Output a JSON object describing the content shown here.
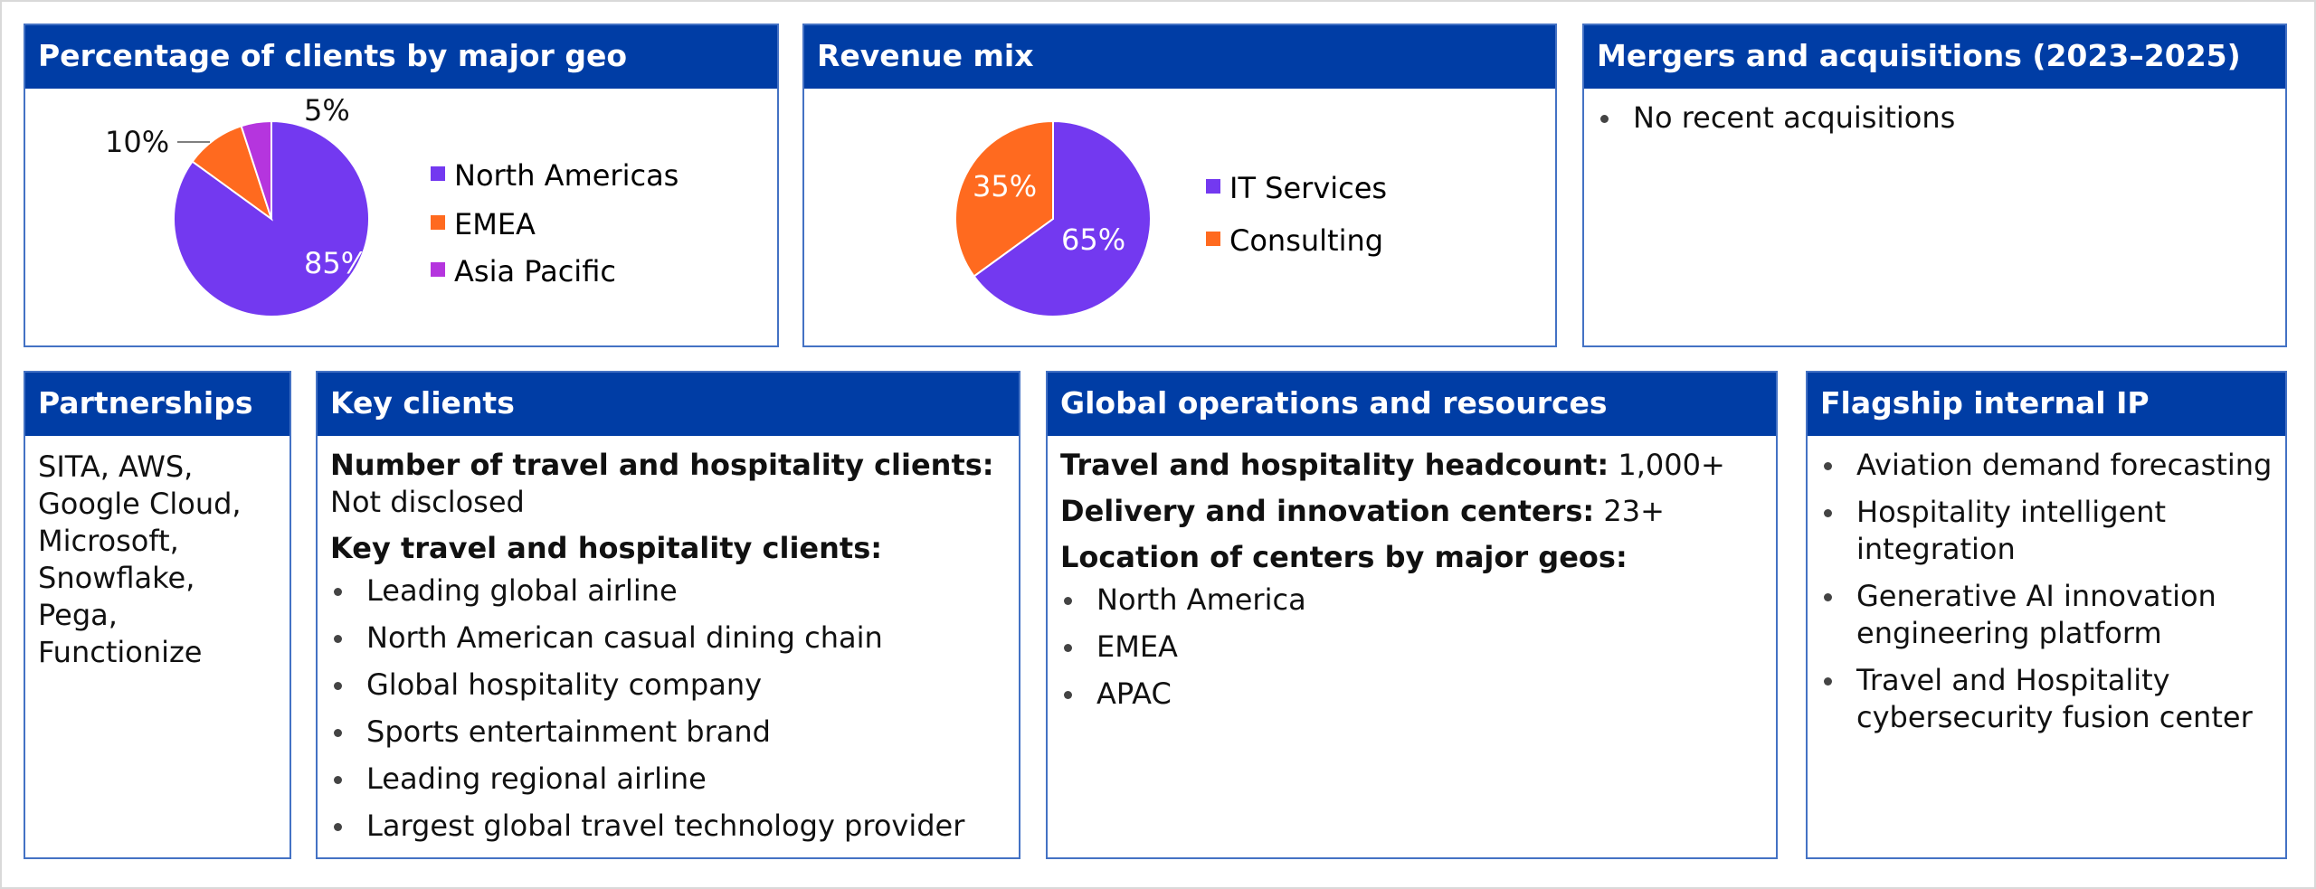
{
  "colors": {
    "header": "#003da5",
    "border": "#4472c4",
    "purple": "#7339f0",
    "orange": "#ff6a1f",
    "magenta": "#b535de"
  },
  "geo": {
    "title": "Percentage of clients by major geo"
  },
  "revenue": {
    "title": "Revenue mix"
  },
  "mna": {
    "title": "Mergers and acquisitions (2023–2025)",
    "items": [
      "No recent acquisitions"
    ]
  },
  "partnerships": {
    "title": "Partnerships",
    "text": "SITA, AWS, Google Cloud, Microsoft, Snowflake, Pega, Functionize"
  },
  "key_clients": {
    "title": "Key clients",
    "count_label": "Number of travel and hospitality clients:",
    "count_value": "Not disclosed",
    "list_label": "Key travel and hospitality clients:",
    "items": [
      "Leading global airline",
      "North American casual dining chain",
      "Global hospitality company",
      "Sports entertainment brand",
      "Leading regional airline",
      "Largest global travel technology provider"
    ]
  },
  "ops": {
    "title": "Global operations and resources",
    "headcount_label": "Travel and hospitality headcount:",
    "headcount_value": "1,000+",
    "centers_label": "Delivery and innovation centers:",
    "centers_value": "23+",
    "locations_label": "Location of centers by major geos:",
    "locations": [
      "North America",
      "EMEA",
      "APAC"
    ]
  },
  "ip": {
    "title": "Flagship internal IP",
    "items": [
      "Aviation demand forecasting",
      "Hospitality intelligent integration",
      "Generative AI innovation engineering platform",
      "Travel and Hospitality cybersecurity fusion center"
    ]
  },
  "chart_data": [
    {
      "type": "pie",
      "title": "Percentage of clients by major geo",
      "categories": [
        "North Americas",
        "EMEA",
        "Asia Pacific"
      ],
      "values": [
        85,
        10,
        5
      ],
      "labels": [
        "85%",
        "10%",
        "5%"
      ],
      "colors": [
        "#7339f0",
        "#ff6a1f",
        "#b535de"
      ],
      "legend": "right"
    },
    {
      "type": "pie",
      "title": "Revenue mix",
      "categories": [
        "IT Services",
        "Consulting"
      ],
      "values": [
        65,
        35
      ],
      "labels": [
        "65%",
        "35%"
      ],
      "colors": [
        "#7339f0",
        "#ff6a1f"
      ],
      "legend": "right"
    }
  ]
}
